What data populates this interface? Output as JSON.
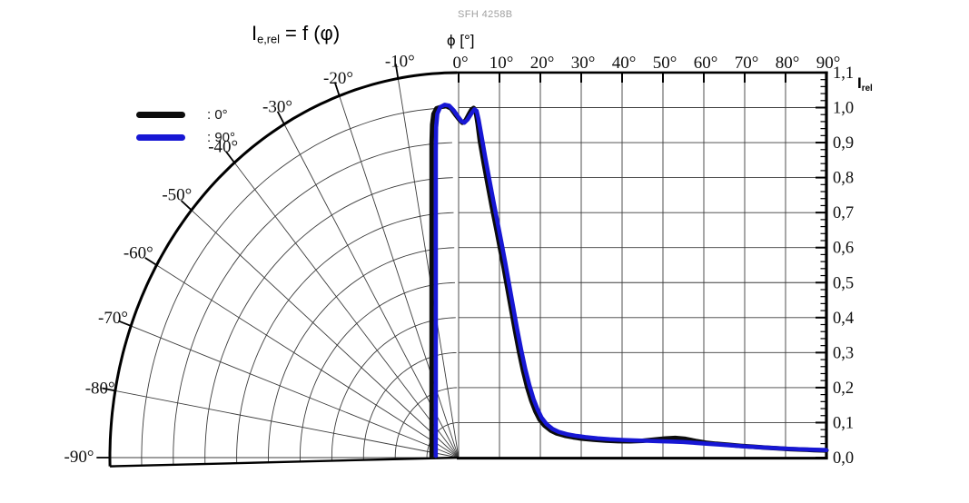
{
  "watermark": "SFH 4258B",
  "title": {
    "base": "I",
    "sub": "e,rel",
    "rest": " = f (φ)"
  },
  "axes": {
    "phi_label": "ϕ [°]",
    "irel_base": "I",
    "irel_sub": "rel",
    "top_tick_labels": [
      "0°",
      "10°",
      "20°",
      "30°",
      "40°",
      "50°",
      "60°",
      "70°",
      "80°",
      "90°"
    ],
    "arc_tick_labels": [
      {
        "deg": -10,
        "label": "-10°"
      },
      {
        "deg": -20,
        "label": "-20°"
      },
      {
        "deg": -30,
        "label": "-30°"
      },
      {
        "deg": -40,
        "label": "-40°"
      },
      {
        "deg": -50,
        "label": "-50°"
      },
      {
        "deg": -60,
        "label": "-60°"
      },
      {
        "deg": -70,
        "label": "-70°"
      },
      {
        "deg": -80,
        "label": "-80°"
      },
      {
        "deg": -90,
        "label": "-90°"
      }
    ],
    "right_tick_labels": [
      "1,1",
      "1,0",
      "0,9",
      "0,8",
      "0,7",
      "0,6",
      "0,5",
      "0,4",
      "0,3",
      "0,2",
      "0,1",
      "0,0"
    ]
  },
  "legend": {
    "items": [
      {
        "label": ": 0°",
        "color": "#0c0c0c"
      },
      {
        "label": ": 90°",
        "color": "#1717d4"
      }
    ]
  },
  "chart_data": {
    "type": "line",
    "title": "Ie,rel = f (φ)",
    "xlabel": "ϕ [°]",
    "ylabel": "Irel",
    "x_range_deg": [
      -90,
      90
    ],
    "y_range": [
      0.0,
      1.1
    ],
    "y_tick_step": 0.1,
    "x_tick_step_deg": 10,
    "layout": "left half polar fan (-90°..0°), right half cartesian (0°..90°)",
    "legend_position": "upper-left",
    "series": [
      {
        "name": "0°",
        "color": "#0c0c0c",
        "points": [
          [
            -88,
            0.085
          ],
          [
            -80,
            0.0865
          ],
          [
            -72,
            0.0895
          ],
          [
            -64,
            0.0946
          ],
          [
            -56,
            0.1026
          ],
          [
            -48,
            0.1144
          ],
          [
            -42,
            0.127
          ],
          [
            -37,
            0.1413
          ],
          [
            -33,
            0.1561
          ],
          [
            -29,
            0.1753
          ],
          [
            -26,
            0.1939
          ],
          [
            -23,
            0.2176
          ],
          [
            -20,
            0.2485
          ],
          [
            -17.5,
            0.2827
          ],
          [
            -15,
            0.3284
          ],
          [
            -13,
            0.378
          ],
          [
            -11.5,
            0.4264
          ],
          [
            -10,
            0.4895
          ],
          [
            -9,
            0.5434
          ],
          [
            -8,
            0.6108
          ],
          [
            -7.2,
            0.678
          ],
          [
            -6.5,
            0.751
          ],
          [
            -5.9,
            0.827
          ],
          [
            -5.4,
            0.903
          ],
          [
            -5,
            0.955
          ],
          [
            -4.6,
            0.985
          ],
          [
            -4,
            1.0
          ],
          [
            -3,
            1.004
          ],
          [
            -2.2,
            1.005
          ],
          [
            -1.4,
            0.998
          ],
          [
            -0.6,
            0.98
          ],
          [
            0.2,
            0.965
          ],
          [
            0.9,
            0.957
          ],
          [
            1.7,
            0.963
          ],
          [
            2.5,
            0.981
          ],
          [
            3.2,
            0.995
          ],
          [
            3.7,
            0.999
          ],
          [
            4.2,
            0.988
          ],
          [
            4.7,
            0.952
          ],
          [
            5.2,
            0.905
          ],
          [
            6.2,
            0.838
          ],
          [
            7.2,
            0.775
          ],
          [
            8.2,
            0.713
          ],
          [
            9.2,
            0.655
          ],
          [
            10.2,
            0.594
          ],
          [
            11,
            0.545
          ],
          [
            11.8,
            0.493
          ],
          [
            12.8,
            0.428
          ],
          [
            13.8,
            0.363
          ],
          [
            14.8,
            0.302
          ],
          [
            15.8,
            0.247
          ],
          [
            16.8,
            0.2
          ],
          [
            17.8,
            0.162
          ],
          [
            18.8,
            0.132
          ],
          [
            19.8,
            0.109
          ],
          [
            21,
            0.0915
          ],
          [
            22.5,
            0.0775
          ],
          [
            24,
            0.069
          ],
          [
            26,
            0.0625
          ],
          [
            28,
            0.058
          ],
          [
            30,
            0.0545
          ],
          [
            33,
            0.051
          ],
          [
            36,
            0.0487
          ],
          [
            39,
            0.047
          ],
          [
            42,
            0.0468
          ],
          [
            45,
            0.048
          ],
          [
            48,
            0.0515
          ],
          [
            50.5,
            0.0545
          ],
          [
            53,
            0.056
          ],
          [
            55.5,
            0.0535
          ],
          [
            58,
            0.0475
          ],
          [
            60.5,
            0.0425
          ],
          [
            63,
            0.0395
          ],
          [
            66,
            0.0365
          ],
          [
            69,
            0.0335
          ],
          [
            72,
            0.031
          ],
          [
            75,
            0.0285
          ],
          [
            78,
            0.0265
          ],
          [
            81,
            0.0245
          ],
          [
            84,
            0.023
          ],
          [
            87,
            0.0215
          ],
          [
            90,
            0.0205
          ]
        ]
      },
      {
        "name": "90°",
        "color": "#1717d4",
        "points": [
          [
            -86,
            0.0722
          ],
          [
            -78,
            0.0739
          ],
          [
            -70,
            0.0769
          ],
          [
            -62,
            0.0818
          ],
          [
            -54,
            0.0893
          ],
          [
            -47,
            0.0985
          ],
          [
            -41,
            0.1098
          ],
          [
            -36,
            0.1225
          ],
          [
            -32,
            0.1359
          ],
          [
            -28,
            0.1534
          ],
          [
            -25,
            0.1704
          ],
          [
            -22,
            0.1922
          ],
          [
            -19,
            0.2212
          ],
          [
            -16.5,
            0.2536
          ],
          [
            -14,
            0.2976
          ],
          [
            -12,
            0.3463
          ],
          [
            -10.5,
            0.3952
          ],
          [
            -9.2,
            0.4505
          ],
          [
            -8.2,
            0.505
          ],
          [
            -7.3,
            0.5665
          ],
          [
            -6.5,
            0.6361
          ],
          [
            -5.8,
            0.7122
          ],
          [
            -5.2,
            0.794
          ],
          [
            -4.7,
            0.877
          ],
          [
            -4.3,
            0.946
          ],
          [
            -3.9,
            0.985
          ],
          [
            -3.3,
            1.003
          ],
          [
            -2.5,
            1.009
          ],
          [
            -1.7,
            1.006
          ],
          [
            -0.9,
            0.992
          ],
          [
            -0.1,
            0.974
          ],
          [
            0.7,
            0.961
          ],
          [
            1.4,
            0.957
          ],
          [
            2.2,
            0.966
          ],
          [
            3.1,
            0.983
          ],
          [
            3.9,
            0.995
          ],
          [
            4.4,
            0.991
          ],
          [
            4.9,
            0.966
          ],
          [
            5.5,
            0.925
          ],
          [
            6.5,
            0.858
          ],
          [
            7.5,
            0.795
          ],
          [
            8.5,
            0.733
          ],
          [
            9.5,
            0.673
          ],
          [
            10.5,
            0.613
          ],
          [
            11.4,
            0.558
          ],
          [
            12.3,
            0.498
          ],
          [
            13.3,
            0.433
          ],
          [
            14.3,
            0.368
          ],
          [
            15.3,
            0.308
          ],
          [
            16.3,
            0.253
          ],
          [
            17.3,
            0.207
          ],
          [
            18.3,
            0.168
          ],
          [
            19.3,
            0.138
          ],
          [
            20.3,
            0.114
          ],
          [
            21.5,
            0.096
          ],
          [
            23,
            0.082
          ],
          [
            24.5,
            0.0735
          ],
          [
            26.5,
            0.067
          ],
          [
            28.5,
            0.0625
          ],
          [
            31,
            0.0585
          ],
          [
            34,
            0.055
          ],
          [
            37,
            0.0525
          ],
          [
            40,
            0.0505
          ],
          [
            43,
            0.049
          ],
          [
            46,
            0.048
          ],
          [
            49,
            0.047
          ],
          [
            52,
            0.046
          ],
          [
            55,
            0.0445
          ],
          [
            58,
            0.042
          ],
          [
            61,
            0.0395
          ],
          [
            64,
            0.037
          ],
          [
            67,
            0.0345
          ],
          [
            70,
            0.032
          ],
          [
            73,
            0.03
          ],
          [
            76,
            0.028
          ],
          [
            79,
            0.0262
          ],
          [
            82,
            0.0247
          ],
          [
            85,
            0.0233
          ],
          [
            88,
            0.0222
          ],
          [
            90,
            0.0215
          ]
        ]
      }
    ]
  }
}
